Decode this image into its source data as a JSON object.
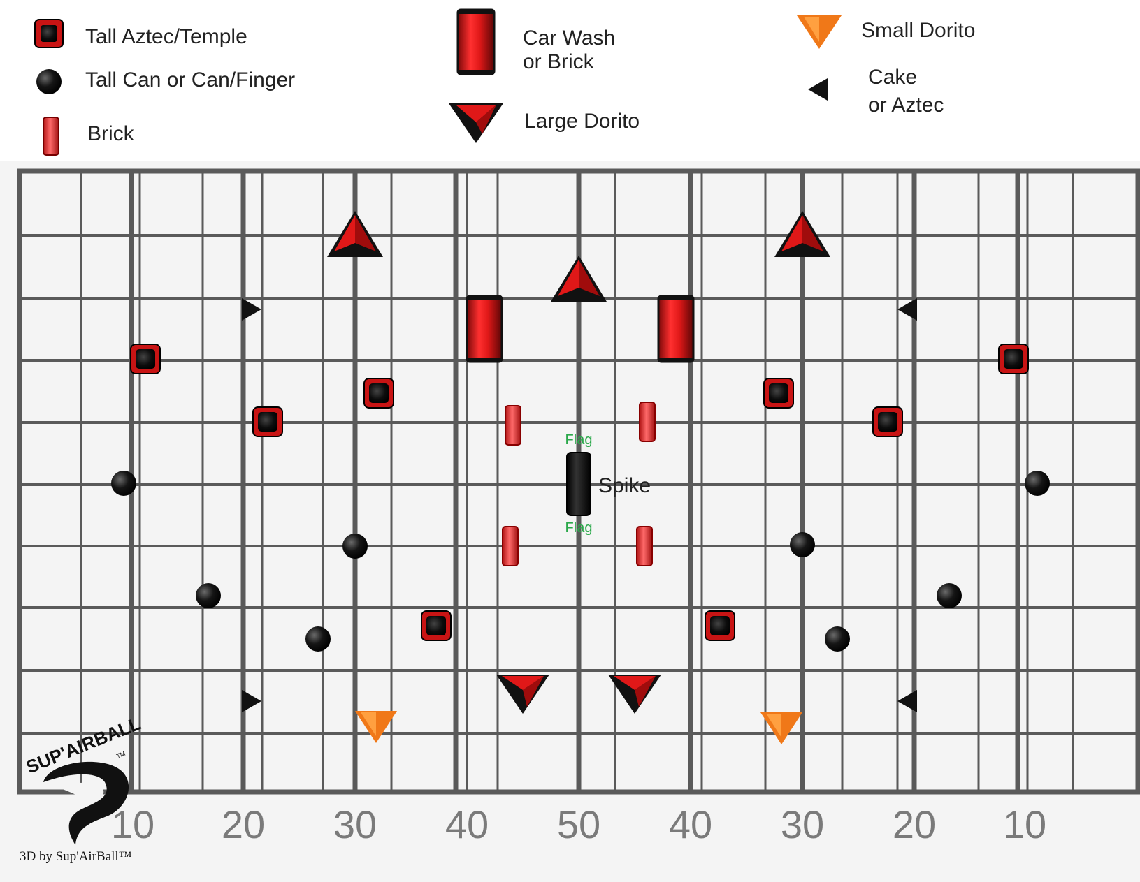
{
  "legend": {
    "tall_aztec": "Tall Aztec/Temple",
    "tall_can": "Tall Can or Can/Finger",
    "brick": "Brick",
    "car_wash_line1": "Car Wash",
    "car_wash_line2": "or Brick",
    "large_dorito": "Large Dorito",
    "small_dorito": "Small Dorito",
    "cake_line1": "Cake",
    "cake_line2": "or Aztec"
  },
  "field": {
    "yard_labels": [
      "10",
      "20",
      "30",
      "40",
      "50",
      "40",
      "30",
      "20",
      "10"
    ],
    "flag_top": "Flag",
    "flag_bottom": "Flag",
    "spike_label": "Spike"
  },
  "logo": {
    "brand_text": "SUP'AIRBALL",
    "tm": "TM",
    "credit": "3D by Sup'AirBall™"
  },
  "colors": {
    "bunker_red": "#d81818",
    "bunker_dark": "#111111",
    "small_dorito": "#f07818",
    "grid_line": "#5a5a5a",
    "flag_text": "#2aa84a"
  }
}
